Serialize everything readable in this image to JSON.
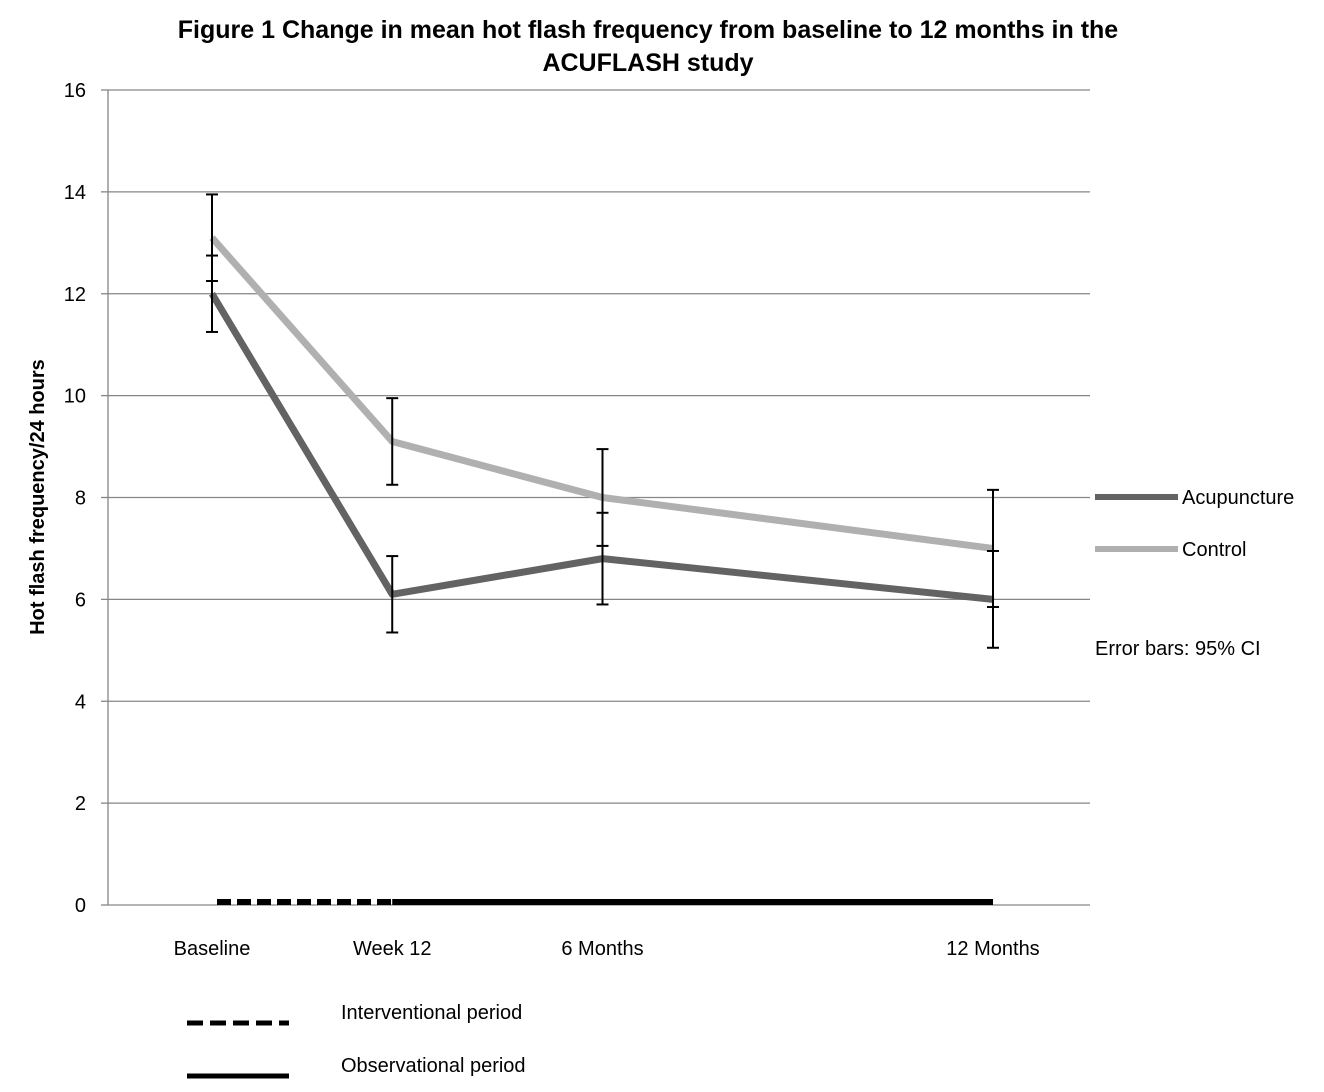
{
  "chart_data": {
    "type": "line",
    "title": "Figure 1 Change in mean hot flash frequency  from baseline to 12 months in the ACUFLASH study",
    "title_lines": [
      "Figure 1 Change in mean hot flash frequency  from baseline to 12 months in the",
      "ACUFLASH study"
    ],
    "xlabel": "",
    "ylabel": "Hot flash frequency/24 hours",
    "categories": [
      "Baseline",
      "Week 12",
      "6 Months",
      "12 Months"
    ],
    "x_positions": [
      0,
      12,
      26,
      52
    ],
    "x_unit": "weeks",
    "ylim": [
      0,
      16
    ],
    "yticks": [
      0,
      2,
      4,
      6,
      8,
      10,
      12,
      14,
      16
    ],
    "grid": true,
    "legend_position": "right",
    "series": [
      {
        "name": "Acupuncture",
        "color": "#636363",
        "values": [
          12.0,
          6.1,
          6.8,
          6.0
        ],
        "ci_low": [
          11.25,
          5.35,
          5.9,
          5.05
        ],
        "ci_high": [
          12.75,
          6.85,
          7.7,
          6.95
        ]
      },
      {
        "name": "Control",
        "color": "#b0b0b0",
        "values": [
          13.1,
          9.1,
          8.0,
          7.0
        ],
        "ci_low": [
          12.25,
          8.25,
          7.05,
          5.85
        ],
        "ci_high": [
          13.95,
          9.95,
          8.95,
          8.15
        ]
      }
    ],
    "annotations": {
      "error_bars_note": "Error bars: 95% CI"
    },
    "periods": [
      {
        "label": "Interventional period",
        "style": "dashed",
        "from": "Baseline",
        "to": "Week 12"
      },
      {
        "label": "Observational period",
        "style": "solid",
        "from": "Week 12",
        "to": "12 Months"
      }
    ]
  }
}
